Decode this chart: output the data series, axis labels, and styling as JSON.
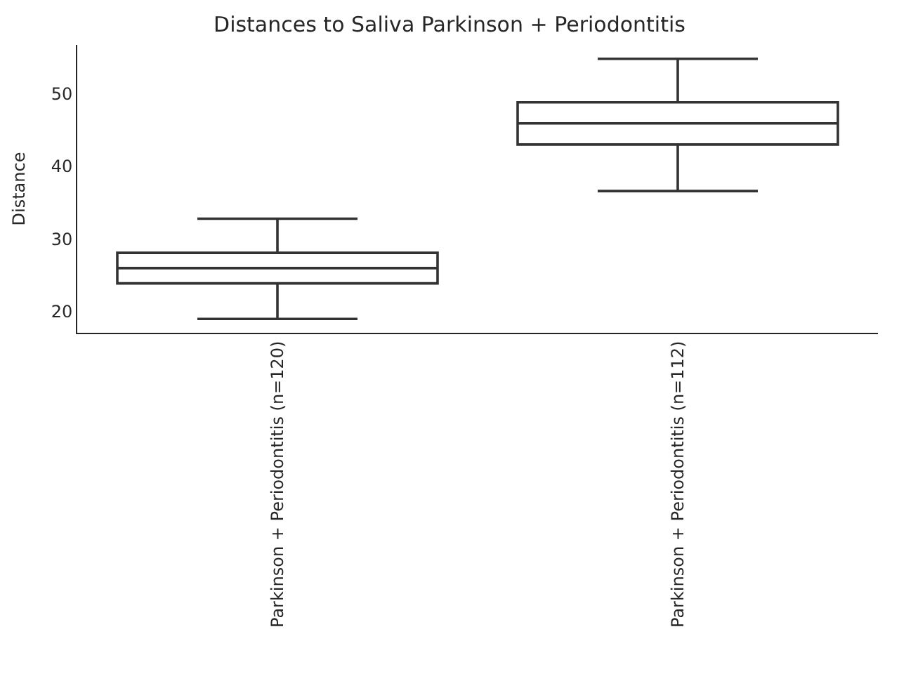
{
  "chart_data": {
    "type": "box",
    "title": "Distances to Saliva Parkinson + Periodontitis",
    "ylabel": "Distance",
    "categories": [
      "Parkinson + Periodontitis (n=120)",
      "Parkinson + Periodontitis (n=112)"
    ],
    "boxes": [
      {
        "low": 19.0,
        "q1": 23.9,
        "median": 26.0,
        "q3": 28.1,
        "high": 32.8
      },
      {
        "low": 36.6,
        "q1": 43.0,
        "median": 45.9,
        "q3": 48.8,
        "high": 54.8
      }
    ],
    "color": "#333333",
    "ylim": [
      17.1,
      56.7
    ],
    "yticks": [
      20,
      30,
      40,
      50
    ]
  }
}
